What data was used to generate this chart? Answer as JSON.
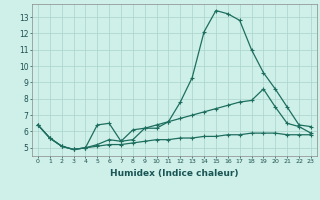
{
  "xlabel": "Humidex (Indice chaleur)",
  "bg_color": "#cef0e8",
  "grid_color": "#aad4cc",
  "line_color": "#1e6e60",
  "xlim": [
    -0.5,
    23.5
  ],
  "ylim": [
    4.5,
    13.8
  ],
  "xticks": [
    0,
    1,
    2,
    3,
    4,
    5,
    6,
    7,
    8,
    9,
    10,
    11,
    12,
    13,
    14,
    15,
    16,
    17,
    18,
    19,
    20,
    21,
    22,
    23
  ],
  "yticks": [
    5,
    6,
    7,
    8,
    9,
    10,
    11,
    12,
    13
  ],
  "line1_x": [
    0,
    1,
    2,
    3,
    4,
    5,
    6,
    7,
    8,
    9,
    10,
    11,
    12,
    13,
    14,
    15,
    16,
    17,
    18,
    19,
    20,
    21,
    22,
    23
  ],
  "line1_y": [
    6.4,
    5.6,
    5.1,
    4.9,
    5.0,
    6.4,
    6.5,
    5.4,
    5.5,
    6.2,
    6.2,
    6.6,
    7.8,
    9.3,
    12.1,
    13.4,
    13.2,
    12.8,
    11.0,
    9.6,
    8.6,
    7.5,
    6.4,
    6.3
  ],
  "line2_x": [
    0,
    1,
    2,
    3,
    4,
    5,
    6,
    7,
    8,
    9,
    10,
    11,
    12,
    13,
    14,
    15,
    16,
    17,
    18,
    19,
    20,
    21,
    22,
    23
  ],
  "line2_y": [
    6.4,
    5.6,
    5.1,
    4.9,
    5.0,
    5.2,
    5.5,
    5.4,
    6.1,
    6.2,
    6.4,
    6.6,
    6.8,
    7.0,
    7.2,
    7.4,
    7.6,
    7.8,
    7.9,
    8.6,
    7.5,
    6.5,
    6.3,
    5.9
  ],
  "line3_x": [
    0,
    1,
    2,
    3,
    4,
    5,
    6,
    7,
    8,
    9,
    10,
    11,
    12,
    13,
    14,
    15,
    16,
    17,
    18,
    19,
    20,
    21,
    22,
    23
  ],
  "line3_y": [
    6.4,
    5.6,
    5.1,
    4.9,
    5.0,
    5.1,
    5.2,
    5.2,
    5.3,
    5.4,
    5.5,
    5.5,
    5.6,
    5.6,
    5.7,
    5.7,
    5.8,
    5.8,
    5.9,
    5.9,
    5.9,
    5.8,
    5.8,
    5.8
  ],
  "marker_size": 2.5,
  "line_width": 0.9
}
